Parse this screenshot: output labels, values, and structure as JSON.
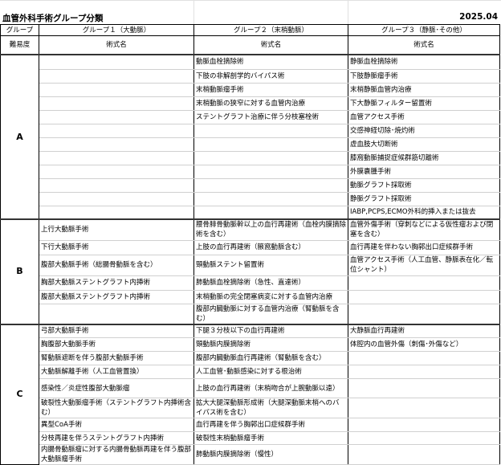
{
  "title": "血管外科手術グループ分類",
  "date": "2025.04",
  "header": {
    "group_label": "グループ",
    "difficulty_label": "難易度",
    "groups": [
      "グループ１（大動脈）",
      "グループ２（末梢動脈）",
      "グループ３（静脈･その他）"
    ],
    "procedure_label": "術式名"
  },
  "sections": [
    {
      "level": "A",
      "rows": [
        [
          "",
          "動脈血栓摘除術",
          "静脈血栓摘除術"
        ],
        [
          "",
          "下肢の非解剖学的バイパス術",
          "下肢静脈瘤手術"
        ],
        [
          "",
          "末梢動脈瘤手術",
          "末梢静脈血管内治療"
        ],
        [
          "",
          "末梢動脈の狭窄に対する血管内治療",
          "下大静脈フィルター留置術"
        ],
        [
          "",
          "ステントグラフト治療に伴う分枝塞栓術",
          "血管アクセス手術"
        ],
        [
          "",
          "",
          "交感神経切除･焼灼術"
        ],
        [
          "",
          "",
          "虚血肢大切断術"
        ],
        [
          "",
          "",
          "膝窩動脈捕捉症候群筋切離術"
        ],
        [
          "",
          "",
          "外膜嚢腫手術"
        ],
        [
          "",
          "",
          "動脈グラフト採取術"
        ],
        [
          "",
          "",
          "静脈グラフト採取術"
        ],
        [
          "",
          "",
          "IABP,PCPS,ECMO外科的挿入または抜去"
        ]
      ]
    },
    {
      "level": "B",
      "rows": [
        [
          "上行大動脈手術",
          "腰骨腓骨動脈幹以上の血行再建術（血栓内膜摘除術を含む）",
          "血管外傷手術（穿刺などによる仮性瘤および閉塞を含む）"
        ],
        [
          "下行大動脈手術",
          "上肢の血行再建術（腋窩動脈含む）",
          "血行再建を伴わない胸郭出口症候群手術"
        ],
        [
          "腹部大動脈手術（総腸骨動脈を含む）",
          "頸動脈ステント留置術",
          "血管アクセス手術（人工血管、静脈表在化／転位シャント）"
        ],
        [
          "胸部大動脈ステントグラフト内挿術",
          "肺動脈血栓摘除術（急性、直達術）",
          ""
        ],
        [
          "腹部大動脈ステントグラフト内挿術",
          "末梢動脈の完全閉塞病変に対する血管内治療",
          ""
        ],
        [
          "",
          "腹部内臓動脈に対する血管内治療（腎動脈を含む）",
          ""
        ]
      ]
    },
    {
      "level": "C",
      "rows": [
        [
          "弓部大動脈手術",
          "下腿３分枝以下の血行再建術",
          "大静脈血行再建術"
        ],
        [
          "胸腹部大動脈手術",
          "頸動脈内膜摘除術",
          "体腔内の血管外傷（刺傷･外傷など）"
        ],
        [
          "腎動脈遮断を伴う腹部大動脈手術",
          "腹部内臓動脈血行再建術（腎動脈を含む）",
          ""
        ],
        [
          "大動脈解離手術（人工血管置換）",
          "人工血管･動脈感染に対する根治術",
          ""
        ],
        [
          "感染性／炎症性腹部大動脈瘤",
          "上肢の血行再建術（末梢吻合が上腕動脈以遠）",
          ""
        ],
        [
          "破裂性大動脈瘤手術（ステントグラフト内挿術含む）",
          "拡大大腿深動脈形成術（大腿深動脈末梢へのバイパス術を含む）",
          ""
        ],
        [
          "異型CoA手術",
          "血行再建を伴う胸郭出口症候群手術",
          ""
        ],
        [
          "分枝再建を伴うステントグラフト内挿術",
          "破裂性末梢動脈瘤手術",
          ""
        ],
        [
          "内腸骨動脈瘤に対する内腸骨動脈再建を伴う腹部大動脈瘤手術",
          "肺動脈内膜摘除術（慢性）",
          ""
        ]
      ]
    }
  ]
}
